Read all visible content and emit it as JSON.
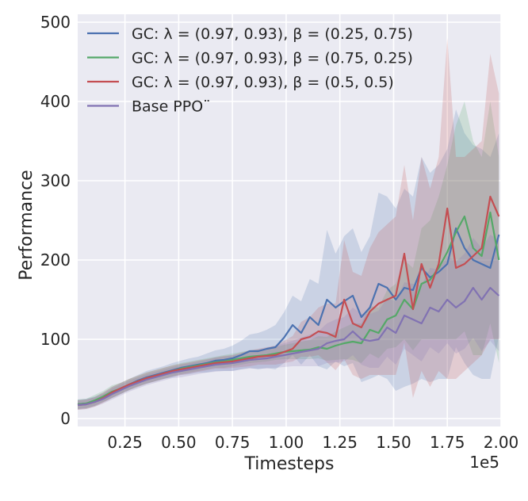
{
  "chart_data": {
    "type": "line",
    "xlabel": "Timesteps",
    "ylabel": "Performance",
    "x_offset_label": "1e5",
    "xlim": [
      0.03,
      2.0
    ],
    "ylim": [
      -10,
      510
    ],
    "xticks": [
      0.25,
      0.5,
      0.75,
      1.0,
      1.25,
      1.5,
      1.75,
      2.0
    ],
    "xtick_labels": [
      "0.25",
      "0.50",
      "0.75",
      "1.00",
      "1.25",
      "1.50",
      "1.75",
      "2.00"
    ],
    "yticks": [
      0,
      100,
      200,
      300,
      400,
      500
    ],
    "ytick_labels": [
      "0",
      "100",
      "200",
      "300",
      "400",
      "500"
    ],
    "grid": true,
    "legend_position": "upper-left",
    "x": [
      0.03,
      0.07,
      0.11,
      0.15,
      0.19,
      0.23,
      0.27,
      0.31,
      0.35,
      0.39,
      0.43,
      0.47,
      0.51,
      0.55,
      0.59,
      0.63,
      0.67,
      0.71,
      0.75,
      0.79,
      0.83,
      0.87,
      0.91,
      0.95,
      0.99,
      1.03,
      1.07,
      1.11,
      1.15,
      1.19,
      1.23,
      1.27,
      1.31,
      1.35,
      1.39,
      1.43,
      1.47,
      1.51,
      1.55,
      1.59,
      1.63,
      1.67,
      1.71,
      1.75,
      1.79,
      1.83,
      1.87,
      1.91,
      1.95,
      1.99
    ],
    "series": [
      {
        "name": "GC: λ = (0.97, 0.93), β = (0.25, 0.75)",
        "color": "#4c72b0",
        "values": [
          18,
          19,
          22,
          27,
          33,
          38,
          43,
          48,
          52,
          55,
          58,
          61,
          64,
          66,
          68,
          70,
          73,
          74,
          76,
          80,
          85,
          85,
          88,
          90,
          102,
          118,
          108,
          128,
          118,
          150,
          140,
          148,
          155,
          128,
          140,
          170,
          165,
          150,
          165,
          162,
          190,
          178,
          185,
          195,
          240,
          215,
          200,
          195,
          190,
          232
        ],
        "upper": [
          24,
          25,
          28,
          33,
          40,
          45,
          50,
          55,
          60,
          63,
          66,
          70,
          73,
          76,
          78,
          82,
          86,
          88,
          92,
          98,
          106,
          108,
          112,
          118,
          134,
          155,
          148,
          176,
          170,
          238,
          208,
          230,
          240,
          210,
          230,
          285,
          280,
          265,
          290,
          280,
          330,
          310,
          320,
          340,
          390,
          360,
          345,
          340,
          330,
          360
        ],
        "lower": [
          12,
          13,
          16,
          21,
          26,
          31,
          36,
          41,
          44,
          47,
          50,
          52,
          55,
          56,
          58,
          58,
          60,
          60,
          60,
          62,
          64,
          62,
          64,
          62,
          70,
          80,
          68,
          80,
          66,
          62,
          72,
          66,
          70,
          46,
          50,
          55,
          50,
          35,
          40,
          44,
          50,
          46,
          50,
          50,
          90,
          70,
          55,
          50,
          50,
          104
        ]
      },
      {
        "name": "GC: λ = (0.97, 0.93), β = (0.75, 0.25)",
        "color": "#55a868",
        "values": [
          18,
          19,
          23,
          28,
          34,
          38,
          43,
          47,
          51,
          54,
          57,
          60,
          63,
          65,
          67,
          69,
          71,
          72,
          74,
          76,
          78,
          79,
          80,
          82,
          84,
          85,
          86,
          87,
          90,
          88,
          92,
          95,
          97,
          95,
          112,
          108,
          125,
          130,
          150,
          138,
          170,
          175,
          190,
          210,
          235,
          255,
          215,
          205,
          260,
          200
        ],
        "upper": [
          24,
          25,
          30,
          35,
          42,
          45,
          50,
          54,
          58,
          61,
          64,
          67,
          70,
          72,
          74,
          76,
          78,
          80,
          82,
          84,
          86,
          87,
          88,
          90,
          93,
          95,
          97,
          99,
          104,
          103,
          110,
          115,
          120,
          120,
          142,
          140,
          162,
          170,
          200,
          190,
          240,
          250,
          280,
          320,
          370,
          400,
          350,
          330,
          400,
          330
        ],
        "lower": [
          12,
          13,
          16,
          21,
          26,
          31,
          36,
          40,
          44,
          47,
          50,
          53,
          56,
          58,
          60,
          62,
          64,
          64,
          66,
          68,
          70,
          71,
          72,
          74,
          75,
          75,
          75,
          75,
          76,
          73,
          74,
          75,
          74,
          70,
          82,
          76,
          88,
          90,
          100,
          86,
          100,
          100,
          100,
          100,
          100,
          110,
          80,
          80,
          120,
          70
        ]
      },
      {
        "name": "GC: λ = (0.97, 0.93), β = (0.5, 0.5)",
        "color": "#c44e52",
        "values": [
          17,
          18,
          21,
          26,
          33,
          38,
          43,
          47,
          51,
          54,
          57,
          60,
          62,
          64,
          66,
          68,
          70,
          71,
          72,
          74,
          76,
          78,
          79,
          80,
          84,
          88,
          100,
          103,
          110,
          108,
          103,
          150,
          120,
          115,
          135,
          145,
          150,
          155,
          208,
          138,
          195,
          165,
          195,
          265,
          190,
          195,
          205,
          215,
          280,
          255
        ],
        "upper": [
          23,
          24,
          27,
          33,
          40,
          45,
          50,
          54,
          58,
          61,
          64,
          67,
          69,
          71,
          73,
          75,
          77,
          79,
          80,
          83,
          86,
          88,
          90,
          92,
          98,
          104,
          122,
          128,
          140,
          145,
          145,
          225,
          185,
          180,
          215,
          235,
          245,
          255,
          320,
          250,
          330,
          290,
          330,
          480,
          330,
          330,
          340,
          350,
          460,
          410
        ],
        "lower": [
          11,
          12,
          15,
          20,
          26,
          31,
          36,
          40,
          44,
          47,
          50,
          53,
          55,
          57,
          59,
          61,
          63,
          63,
          64,
          65,
          66,
          68,
          68,
          68,
          70,
          72,
          78,
          78,
          80,
          71,
          61,
          75,
          55,
          50,
          55,
          55,
          55,
          55,
          96,
          26,
          60,
          40,
          60,
          50,
          50,
          60,
          70,
          80,
          100,
          100
        ]
      },
      {
        "name": "Base PPO¨",
        "color": "#8172b2",
        "values": [
          17,
          18,
          21,
          25,
          31,
          36,
          41,
          45,
          49,
          52,
          55,
          58,
          60,
          62,
          64,
          66,
          68,
          69,
          70,
          72,
          74,
          75,
          76,
          78,
          80,
          82,
          84,
          86,
          88,
          95,
          98,
          100,
          110,
          100,
          98,
          100,
          115,
          108,
          130,
          125,
          120,
          140,
          135,
          150,
          140,
          148,
          165,
          150,
          165,
          155
        ],
        "upper": [
          23,
          24,
          27,
          31,
          38,
          43,
          48,
          52,
          56,
          59,
          62,
          65,
          68,
          70,
          72,
          74,
          77,
          78,
          80,
          82,
          85,
          87,
          89,
          92,
          95,
          98,
          102,
          106,
          110,
          120,
          125,
          128,
          140,
          132,
          132,
          136,
          152,
          148,
          172,
          170,
          168,
          190,
          188,
          205,
          198,
          208,
          228,
          215,
          232,
          225
        ],
        "lower": [
          11,
          12,
          15,
          19,
          24,
          29,
          34,
          38,
          42,
          45,
          48,
          51,
          52,
          54,
          56,
          58,
          59,
          60,
          60,
          62,
          63,
          63,
          63,
          64,
          65,
          66,
          66,
          66,
          66,
          70,
          71,
          72,
          80,
          68,
          64,
          64,
          78,
          68,
          88,
          80,
          72,
          90,
          82,
          95,
          82,
          88,
          102,
          85,
          98,
          85
        ]
      }
    ]
  }
}
